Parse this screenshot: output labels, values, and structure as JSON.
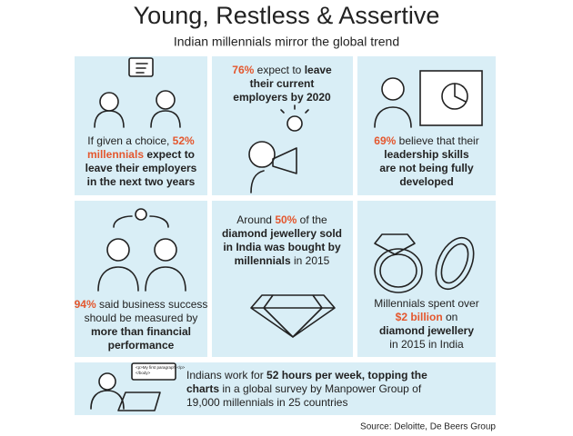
{
  "title": "Young, Restless & Assertive",
  "subtitle": "Indian millennials mirror the global trend",
  "panels": [
    {
      "lines": [
        [
          "If given a choice, ",
          "52%"
        ],
        [
          "millennials",
          " expect to"
        ],
        [
          "leave their employers"
        ],
        [
          "in the next two years"
        ]
      ]
    },
    {
      "lines": [
        [
          "76%",
          " expect to ",
          "leave"
        ],
        [
          "their current"
        ],
        [
          "employers by 2020"
        ]
      ]
    },
    {
      "lines": [
        [
          "69%",
          " believe that their"
        ],
        [
          "leadership skills"
        ],
        [
          "are not being fully"
        ],
        [
          "developed"
        ]
      ]
    },
    {
      "lines": [
        [
          "94%",
          " said business success"
        ],
        [
          "should be measured by"
        ],
        [
          "more than financial"
        ],
        [
          "performance"
        ]
      ]
    },
    {
      "lines": [
        [
          "Around ",
          "50%",
          " of the"
        ],
        [
          "diamond jewellery sold"
        ],
        [
          "in India was bought by"
        ],
        [
          "millennials",
          " in 2015"
        ]
      ]
    },
    {
      "lines": [
        [
          "Millennials spent over"
        ],
        [
          "$2 billion",
          " on"
        ],
        [
          "diamond jewellery"
        ],
        [
          "in 2015 in India"
        ]
      ]
    },
    {
      "lines": [
        [
          "Indians work for ",
          "52 hours per week, topping the"
        ],
        [
          "charts",
          " in a global survey by Manpower Group of"
        ],
        [
          "19,000 millennials in 25 countries"
        ]
      ]
    }
  ],
  "icon_code": [
    "<p>My first paragraph.</p>",
    "</body>"
  ],
  "source": "Source: Deloitte, De Beers Group"
}
